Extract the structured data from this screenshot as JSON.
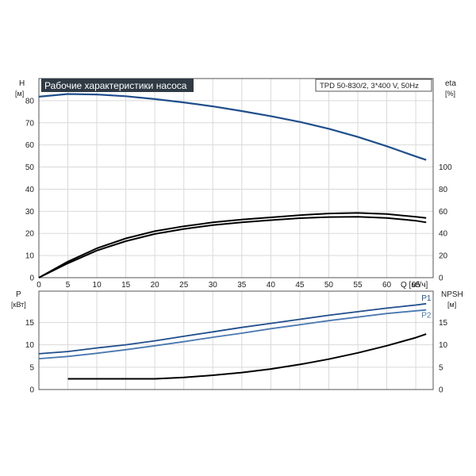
{
  "chart_data": [
    {
      "type": "line",
      "title": "Рабочие характеристики насоса",
      "legend_text": "TPD 50-830/2, 3*400 V, 50Hz",
      "x_axis": {
        "label": "Q [м³/ч]",
        "range": [
          0,
          68
        ],
        "ticks": [
          "0",
          "5",
          "10",
          "15",
          "20",
          "25",
          "30",
          "35",
          "40",
          "45",
          "50",
          "55",
          "60",
          "65"
        ]
      },
      "y_left": {
        "label": "H",
        "unit": "[м]",
        "range": [
          0,
          90
        ],
        "ticks": [
          "0",
          "10",
          "20",
          "30",
          "40",
          "50",
          "60",
          "70",
          "80"
        ]
      },
      "y_right": {
        "label": "eta",
        "unit": "[%]",
        "range": [
          0,
          180
        ],
        "ticks": [
          "0",
          "20",
          "40",
          "60",
          "80",
          "100"
        ]
      },
      "grid": true,
      "series": [
        {
          "axis": "left",
          "color": "#1f4e8c",
          "points": [
            [
              0,
              81.8
            ],
            [
              5,
              83.0
            ],
            [
              10,
              82.8
            ],
            [
              15,
              82.0
            ],
            [
              20,
              80.7
            ],
            [
              25,
              79.2
            ],
            [
              30,
              77.4
            ],
            [
              35,
              75.3
            ],
            [
              40,
              73.0
            ],
            [
              45,
              70.4
            ],
            [
              50,
              67.3
            ],
            [
              55,
              63.6
            ],
            [
              60,
              59.4
            ],
            [
              65,
              54.8
            ],
            [
              66.8,
              53.2
            ]
          ]
        },
        {
          "axis": "right",
          "color": "#000000",
          "points": [
            [
              0,
              0
            ],
            [
              5,
              14.5
            ],
            [
              10,
              26.5
            ],
            [
              15,
              35.5
            ],
            [
              20,
              42.0
            ],
            [
              25,
              46.5
            ],
            [
              30,
              50.0
            ],
            [
              35,
              52.5
            ],
            [
              40,
              54.5
            ],
            [
              45,
              56.5
            ],
            [
              50,
              58.0
            ],
            [
              55,
              58.5
            ],
            [
              60,
              57.5
            ],
            [
              65,
              55.0
            ],
            [
              66.8,
              54.0
            ]
          ]
        },
        {
          "axis": "right",
          "color": "#000000",
          "points": [
            [
              0,
              0
            ],
            [
              5,
              13.0
            ],
            [
              10,
              24.5
            ],
            [
              15,
              33.0
            ],
            [
              20,
              39.5
            ],
            [
              25,
              44.0
            ],
            [
              30,
              47.5
            ],
            [
              35,
              50.0
            ],
            [
              40,
              52.0
            ],
            [
              45,
              53.8
            ],
            [
              50,
              54.8
            ],
            [
              55,
              55.0
            ],
            [
              60,
              54.0
            ],
            [
              65,
              51.5
            ],
            [
              66.8,
              50.0
            ]
          ]
        }
      ]
    },
    {
      "type": "line",
      "x_axis": {
        "range": [
          0,
          68
        ]
      },
      "y_left": {
        "label": "P",
        "unit": "[кВт]",
        "range": [
          0,
          22
        ],
        "ticks": [
          "0",
          "5",
          "10",
          "15"
        ]
      },
      "y_right": {
        "label": "NPSH",
        "unit": "[м]",
        "range": [
          0,
          22
        ],
        "ticks": [
          "0",
          "5",
          "10",
          "15"
        ]
      },
      "grid": true,
      "series": [
        {
          "name": "P1",
          "axis": "left",
          "color": "#1f4e8c",
          "points": [
            [
              0,
              8.0
            ],
            [
              5,
              8.5
            ],
            [
              10,
              9.3
            ],
            [
              15,
              10.0
            ],
            [
              20,
              10.9
            ],
            [
              25,
              11.9
            ],
            [
              30,
              12.9
            ],
            [
              35,
              13.9
            ],
            [
              40,
              14.8
            ],
            [
              45,
              15.7
            ],
            [
              50,
              16.6
            ],
            [
              55,
              17.4
            ],
            [
              60,
              18.2
            ],
            [
              65,
              18.9
            ],
            [
              66.8,
              19.2
            ]
          ]
        },
        {
          "name": "P2",
          "axis": "left",
          "color": "#4a78b0",
          "points": [
            [
              0,
              6.9
            ],
            [
              5,
              7.4
            ],
            [
              10,
              8.1
            ],
            [
              15,
              8.9
            ],
            [
              20,
              9.8
            ],
            [
              25,
              10.7
            ],
            [
              30,
              11.7
            ],
            [
              35,
              12.6
            ],
            [
              40,
              13.6
            ],
            [
              45,
              14.5
            ],
            [
              50,
              15.4
            ],
            [
              55,
              16.2
            ],
            [
              60,
              17.0
            ],
            [
              65,
              17.6
            ],
            [
              66.8,
              17.8
            ]
          ]
        },
        {
          "axis": "right",
          "color": "#000000",
          "points": [
            [
              5,
              2.4
            ],
            [
              10,
              2.4
            ],
            [
              15,
              2.4
            ],
            [
              20,
              2.4
            ],
            [
              25,
              2.7
            ],
            [
              30,
              3.2
            ],
            [
              35,
              3.8
            ],
            [
              40,
              4.6
            ],
            [
              45,
              5.6
            ],
            [
              50,
              6.8
            ],
            [
              55,
              8.2
            ],
            [
              60,
              9.8
            ],
            [
              65,
              11.6
            ],
            [
              66.8,
              12.4
            ]
          ]
        }
      ]
    }
  ]
}
